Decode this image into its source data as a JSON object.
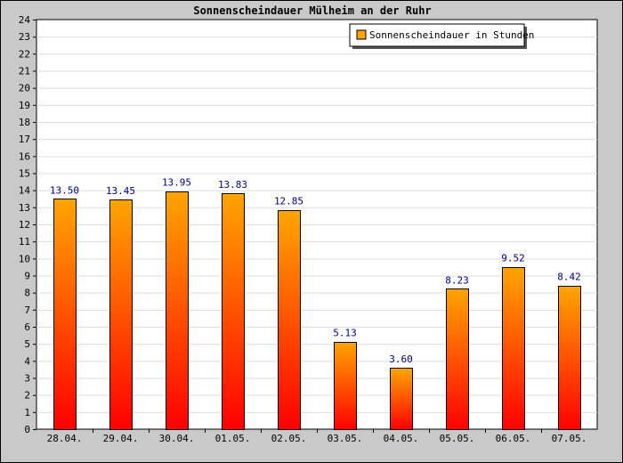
{
  "chart_data": {
    "type": "bar",
    "title": "Sonnenscheindauer Mülheim an der Ruhr",
    "xlabel": "",
    "ylabel": "",
    "ylim": [
      0,
      24
    ],
    "yticks": [
      0,
      1,
      2,
      3,
      4,
      5,
      6,
      7,
      8,
      9,
      10,
      11,
      12,
      13,
      14,
      15,
      16,
      17,
      18,
      19,
      20,
      21,
      22,
      23,
      24
    ],
    "categories": [
      "28.04.",
      "29.04.",
      "30.04.",
      "01.05.",
      "02.05.",
      "03.05.",
      "04.05.",
      "05.05.",
      "06.05.",
      "07.05."
    ],
    "series": [
      {
        "name": "Sonnenscheindauer in Stunden",
        "values": [
          13.5,
          13.45,
          13.95,
          13.83,
          12.85,
          5.13,
          3.6,
          8.23,
          9.52,
          8.42
        ],
        "labels": [
          "13.50",
          "13.45",
          "13.95",
          "13.83",
          "12.85",
          "5.13",
          "3.60",
          "8.23",
          "9.52",
          "8.42"
        ]
      }
    ],
    "grid": true,
    "legend_position": "top-right",
    "colors": {
      "bar_top": "#ffa500",
      "bar_bottom": "#ff0000",
      "bar_edge": "#000000",
      "value_label": "#000080",
      "plot_bg": "#ffffff",
      "frame_bg": "#c9c9c9",
      "grid": "#dddddd",
      "legend_swatch": "#ffa500"
    }
  }
}
